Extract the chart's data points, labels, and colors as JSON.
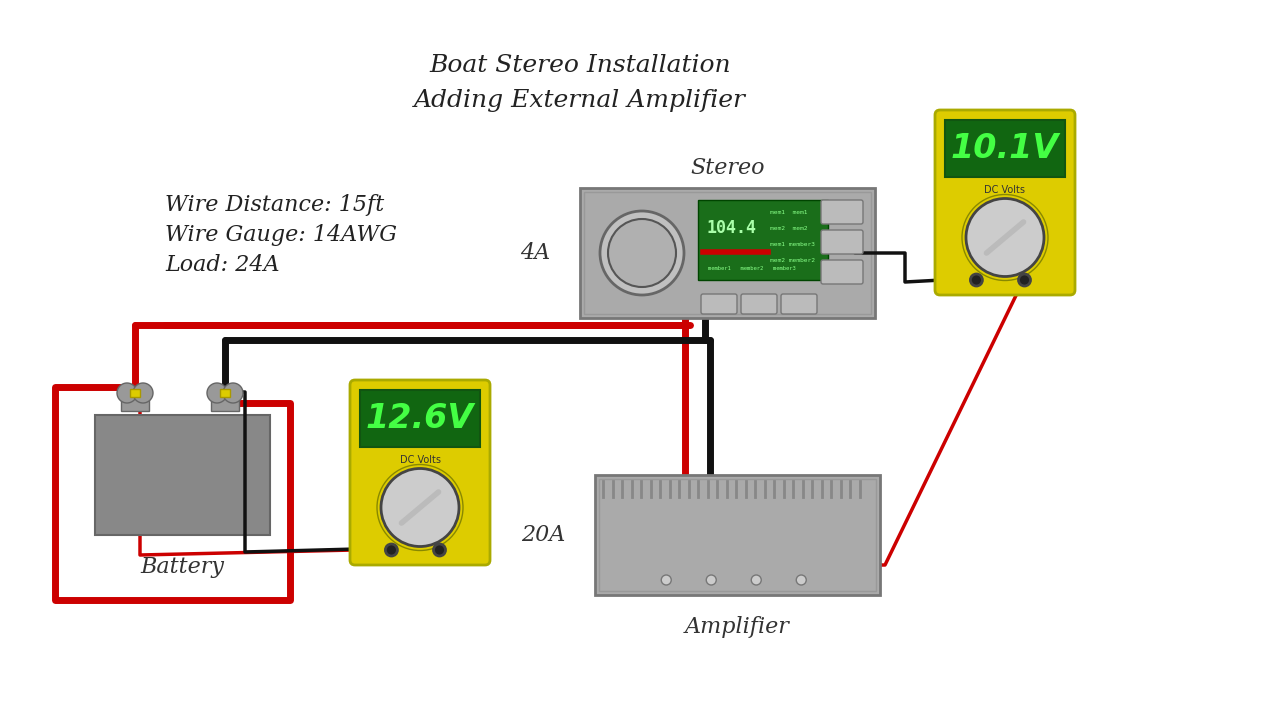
{
  "title_line1": "Boat Stereo Installation",
  "title_line2": "Adding External Amplifier",
  "info_line1": "Wire Distance: 15ft",
  "info_line2": "Wire Gauge: 14AWG",
  "info_line3": "Load: 24A",
  "bg_color": "#ffffff",
  "battery_label": "Battery",
  "stereo_label": "Stereo",
  "amplifier_label": "Amplifier",
  "meter1_voltage": "12.6V",
  "meter2_voltage": "10.1V",
  "meter_sub": "DC Volts",
  "current_stereo": "4A",
  "current_amp": "20A",
  "wire_red": "#cc0000",
  "wire_black": "#111111",
  "battery_color": "#888888",
  "stereo_color": "#aaaaaa",
  "amplifier_color": "#aaaaaa",
  "meter_body_color": "#ddcc00",
  "meter_screen_color": "#228b22",
  "meter_text_color": "#44ff44",
  "terminal_color": "#aaaaaa",
  "terminal_ring_color": "#cccc00",
  "btn_color": "#bbbbbb",
  "title_color": "#222222",
  "info_color": "#222222",
  "label_color": "#333333"
}
